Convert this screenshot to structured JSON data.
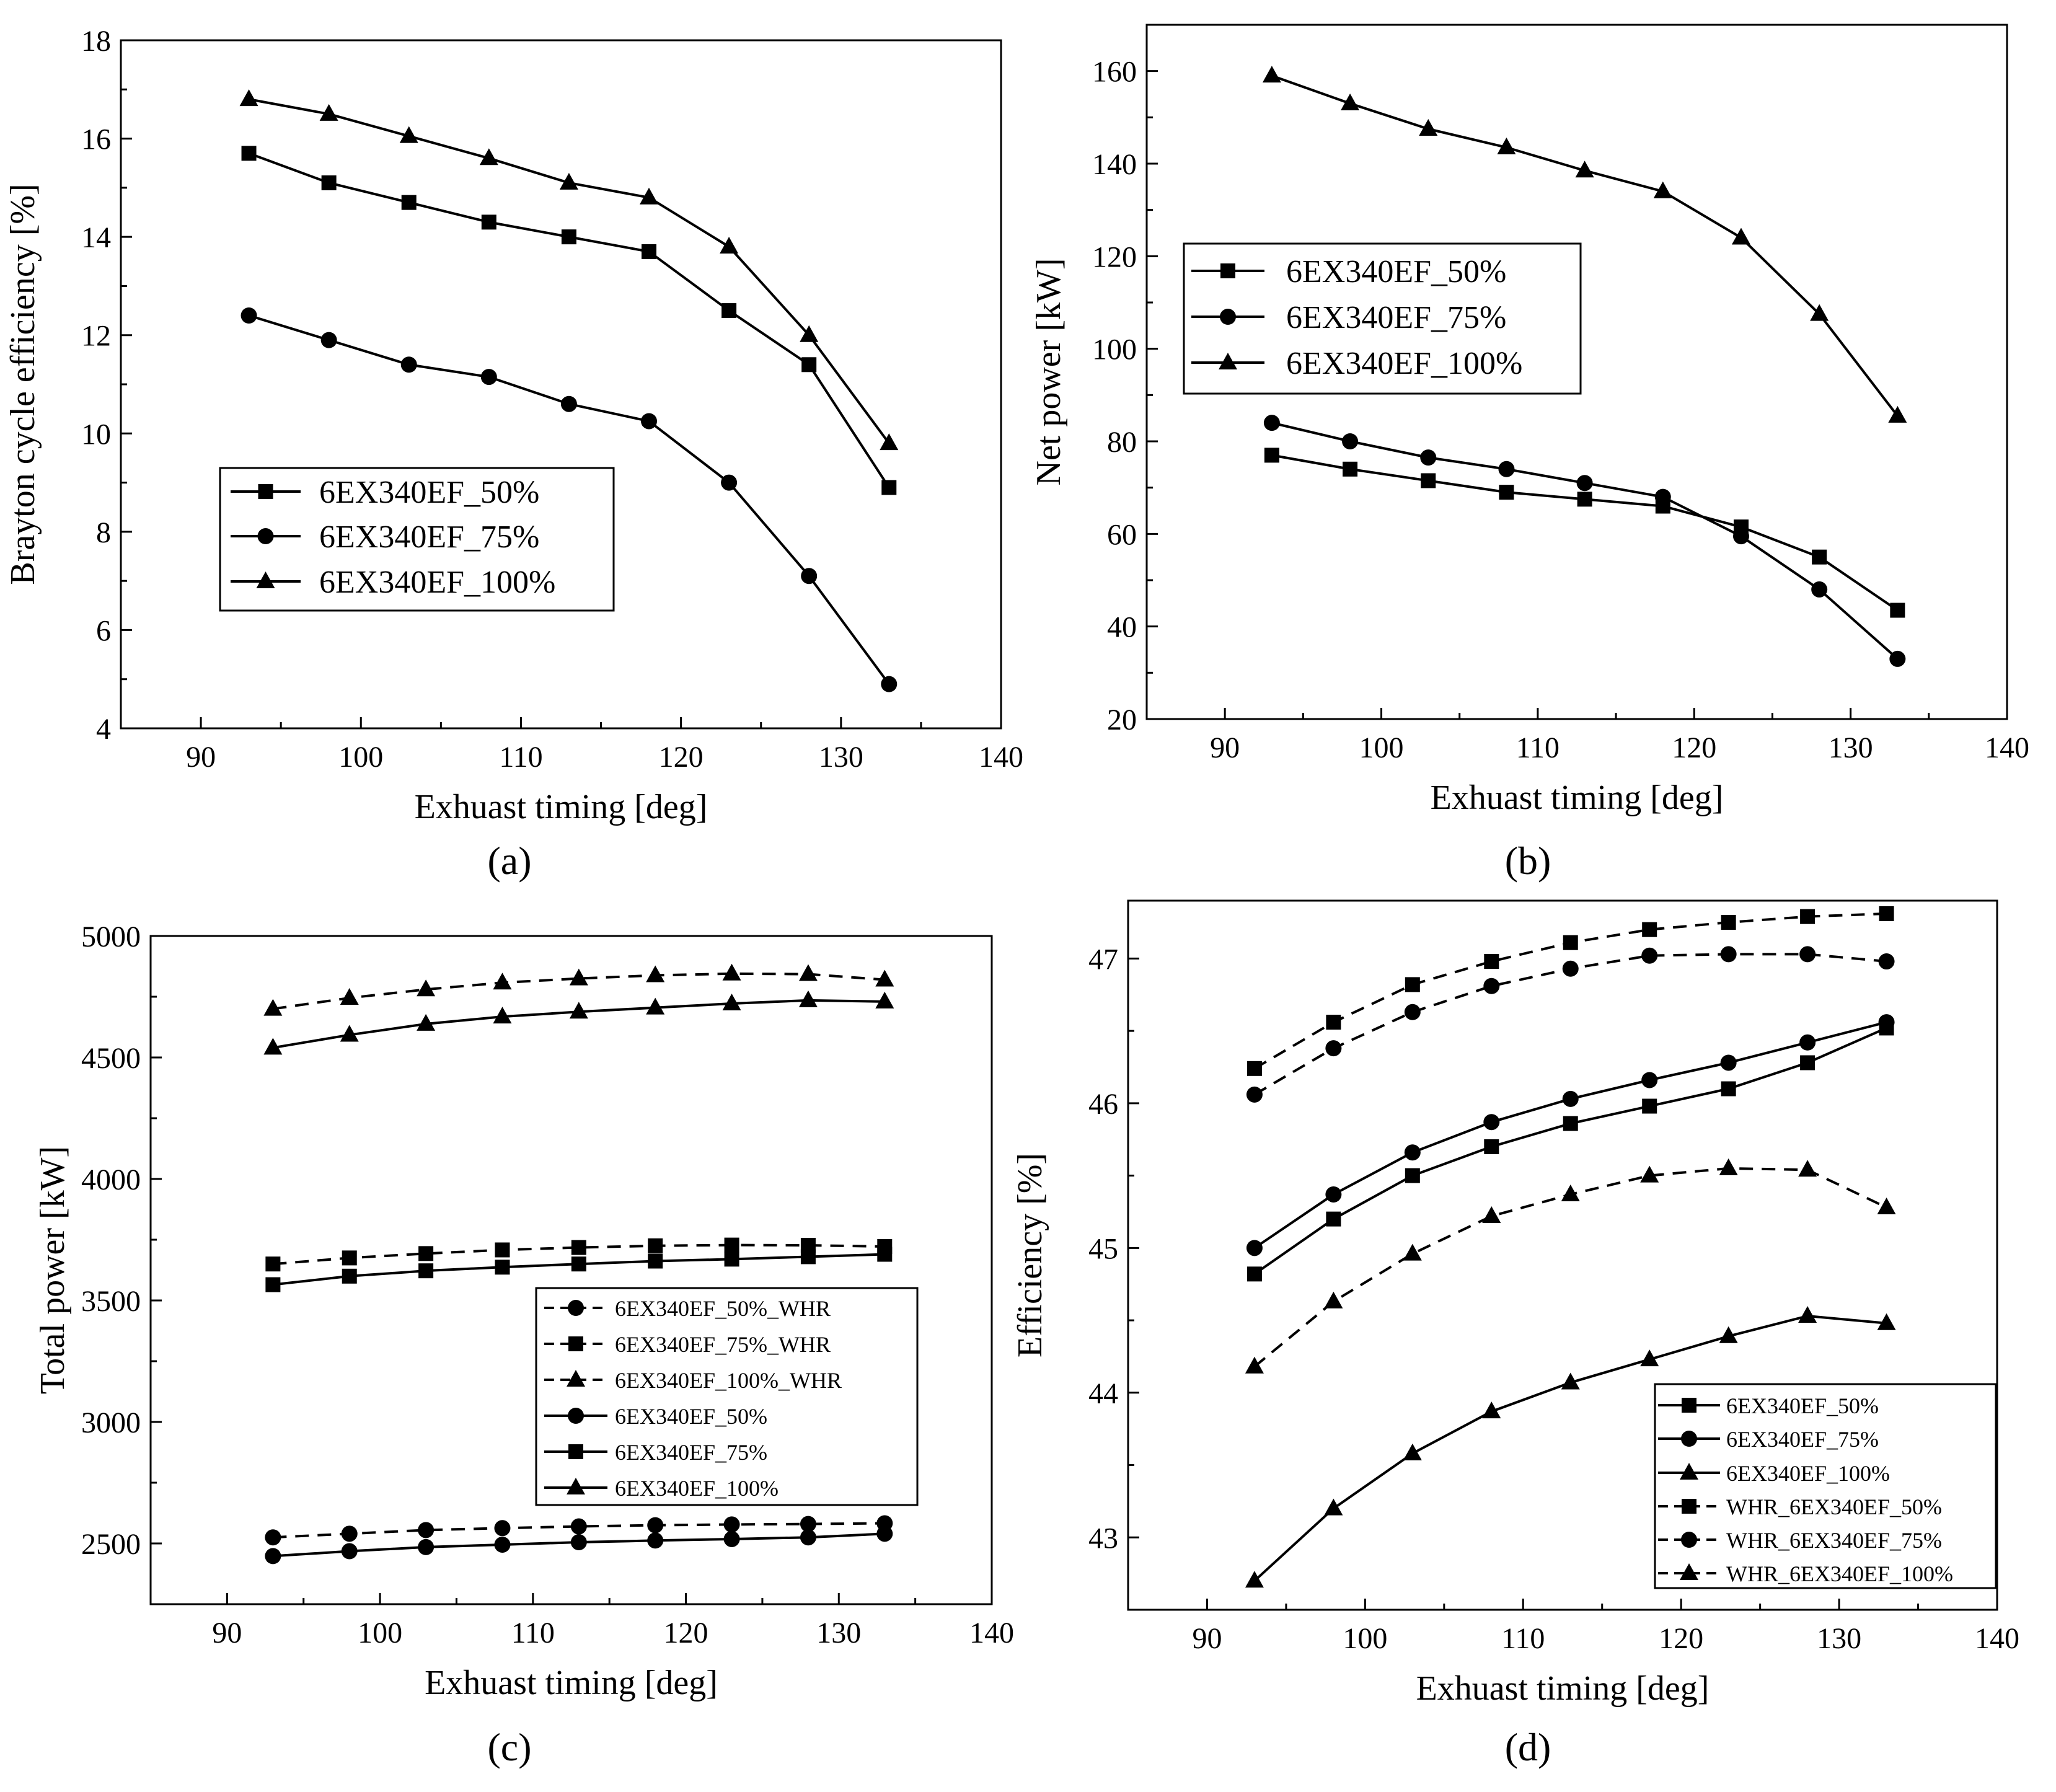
{
  "chart_data": [
    {
      "id": "a",
      "type": "line",
      "panel_label": "(a)",
      "xlabel": "Exhuast timing [deg]",
      "ylabel": "Brayton cycle efficiency [%]",
      "xlim": [
        85,
        140
      ],
      "ylim": [
        4,
        18
      ],
      "xticks": [
        90,
        100,
        110,
        120,
        130,
        140
      ],
      "yticks": [
        4,
        6,
        8,
        10,
        12,
        14,
        16,
        18
      ],
      "x": [
        93,
        98,
        103,
        108,
        113,
        118,
        123,
        128,
        133
      ],
      "legend_position": "center-left",
      "series": [
        {
          "name": "6EX340EF_50%",
          "marker": "square",
          "dash": false,
          "values": [
            15.7,
            15.1,
            14.7,
            14.3,
            14.0,
            13.7,
            12.5,
            11.4,
            8.9
          ]
        },
        {
          "name": "6EX340EF_75%",
          "marker": "circle",
          "dash": false,
          "values": [
            12.4,
            11.9,
            11.4,
            11.15,
            10.6,
            10.25,
            9.0,
            7.1,
            4.9
          ]
        },
        {
          "name": "6EX340EF_100%",
          "marker": "triangle",
          "dash": false,
          "values": [
            16.8,
            16.5,
            16.05,
            15.6,
            15.1,
            14.8,
            13.8,
            12.0,
            9.8
          ]
        }
      ]
    },
    {
      "id": "b",
      "type": "line",
      "panel_label": "(b)",
      "xlabel": "Exhuast timing [deg]",
      "ylabel": "Net power [kW]",
      "xlim": [
        85,
        140
      ],
      "ylim": [
        20,
        170
      ],
      "xticks": [
        90,
        100,
        110,
        120,
        130,
        140
      ],
      "yticks": [
        20,
        40,
        60,
        80,
        100,
        120,
        140,
        160
      ],
      "x": [
        93,
        98,
        103,
        108,
        113,
        118,
        123,
        128,
        133
      ],
      "legend_position": "upper-left",
      "series": [
        {
          "name": "6EX340EF_50%",
          "marker": "square",
          "dash": false,
          "values": [
            77,
            74,
            71.5,
            69,
            67.5,
            66,
            61.5,
            55,
            43.5
          ]
        },
        {
          "name": "6EX340EF_75%",
          "marker": "circle",
          "dash": false,
          "values": [
            84,
            80,
            76.5,
            74,
            71,
            68,
            59.5,
            48,
            33
          ]
        },
        {
          "name": "6EX340EF_100%",
          "marker": "triangle",
          "dash": false,
          "values": [
            159,
            153,
            147.5,
            143.5,
            138.5,
            134,
            124,
            107.5,
            85.5
          ]
        }
      ]
    },
    {
      "id": "c",
      "type": "line",
      "panel_label": "(c)",
      "xlabel": "Exhuast timing [deg]",
      "ylabel": "Total power [kW]",
      "xlim": [
        85,
        140
      ],
      "ylim": [
        2250,
        5000
      ],
      "xticks": [
        90,
        100,
        110,
        120,
        130,
        140
      ],
      "yticks": [
        2500,
        3000,
        3500,
        4000,
        4500,
        5000
      ],
      "x": [
        93,
        98,
        103,
        108,
        113,
        118,
        123,
        128,
        133
      ],
      "legend_position": "lower-right",
      "series": [
        {
          "name": "6EX340EF_50%_WHR",
          "marker": "circle",
          "dash": true,
          "values": [
            2525,
            2540,
            2555,
            2563,
            2570,
            2575,
            2578,
            2580,
            2583
          ]
        },
        {
          "name": "6EX340EF_75%_WHR",
          "marker": "square",
          "dash": true,
          "values": [
            3650,
            3675,
            3693,
            3708,
            3718,
            3725,
            3728,
            3727,
            3722
          ]
        },
        {
          "name": "6EX340EF_100%_WHR",
          "marker": "triangle",
          "dash": true,
          "values": [
            4700,
            4745,
            4780,
            4808,
            4825,
            4838,
            4845,
            4843,
            4820
          ]
        },
        {
          "name": "6EX340EF_50%",
          "marker": "circle",
          "dash": false,
          "values": [
            2448,
            2468,
            2485,
            2495,
            2505,
            2512,
            2518,
            2525,
            2540
          ]
        },
        {
          "name": "6EX340EF_75%",
          "marker": "square",
          "dash": false,
          "values": [
            3565,
            3600,
            3622,
            3637,
            3650,
            3662,
            3670,
            3680,
            3690
          ]
        },
        {
          "name": "6EX340EF_100%",
          "marker": "triangle",
          "dash": false,
          "values": [
            4540,
            4593,
            4638,
            4668,
            4688,
            4705,
            4722,
            4735,
            4730
          ]
        }
      ]
    },
    {
      "id": "d",
      "type": "line",
      "panel_label": "(d)",
      "xlabel": "Exhuast timing [deg]",
      "ylabel": "Efficiency [%]",
      "xlim": [
        85,
        140
      ],
      "ylim": [
        42.5,
        47.4
      ],
      "xticks": [
        90,
        100,
        110,
        120,
        130,
        140
      ],
      "yticks": [
        43,
        44,
        45,
        46,
        47
      ],
      "x": [
        93,
        98,
        103,
        108,
        113,
        118,
        123,
        128,
        133
      ],
      "legend_position": "lower-right",
      "series": [
        {
          "name": "6EX340EF_50%",
          "marker": "square",
          "dash": false,
          "values": [
            44.82,
            45.2,
            45.5,
            45.7,
            45.86,
            45.98,
            46.1,
            46.28,
            46.52
          ]
        },
        {
          "name": "6EX340EF_75%",
          "marker": "circle",
          "dash": false,
          "values": [
            45.0,
            45.37,
            45.66,
            45.87,
            46.03,
            46.16,
            46.28,
            46.42,
            46.56
          ]
        },
        {
          "name": "6EX340EF_100%",
          "marker": "triangle",
          "dash": false,
          "values": [
            42.7,
            43.2,
            43.58,
            43.87,
            44.07,
            44.23,
            44.39,
            44.53,
            44.48
          ]
        },
        {
          "name": "WHR_6EX340EF_50%",
          "marker": "square",
          "dash": true,
          "values": [
            46.24,
            46.56,
            46.82,
            46.98,
            47.11,
            47.2,
            47.25,
            47.29,
            47.31
          ]
        },
        {
          "name": "WHR_6EX340EF_75%",
          "marker": "circle",
          "dash": true,
          "values": [
            46.06,
            46.38,
            46.63,
            46.81,
            46.93,
            47.02,
            47.03,
            47.03,
            46.98
          ]
        },
        {
          "name": "WHR_6EX340EF_100%",
          "marker": "triangle",
          "dash": true,
          "values": [
            44.18,
            44.63,
            44.96,
            45.22,
            45.37,
            45.5,
            45.55,
            45.54,
            45.28
          ]
        }
      ]
    }
  ]
}
